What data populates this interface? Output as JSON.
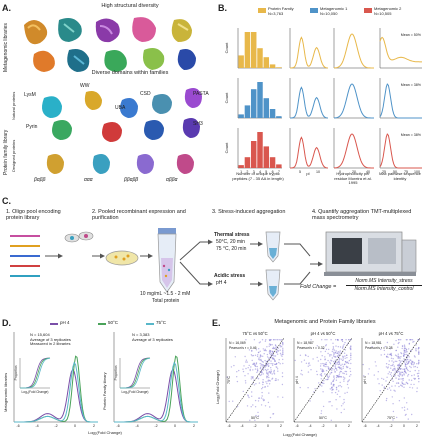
{
  "panel_a": {
    "letter": "A.",
    "top_title": "High structural diversity",
    "mid_title": "Diverse domains within families",
    "row_label_top": "Metagenomic libraries",
    "row_label_bottom": "Protein family library",
    "sublabel_natural": "Natural",
    "sublabel_natural2": "proteins",
    "sublabel_designed": "Designed",
    "sublabel_designed2": "proteins",
    "domains": [
      "LysM",
      "WW",
      "UBA",
      "CSD",
      "PASTA",
      "Pyrin",
      "SH3"
    ],
    "topologies": [
      "βαββ",
      "ααα",
      "ββαββ",
      "αββα"
    ]
  },
  "panel_b": {
    "letter": "B.",
    "legend": [
      {
        "name": "Protein Family",
        "n": "N=3,763",
        "color": "#e8b84a"
      },
      {
        "name": "Metagenomic 1",
        "n": "N=10,050",
        "color": "#4f93c8"
      },
      {
        "name": "Metagenomic 2",
        "n": "N=10,505",
        "color": "#d9574e"
      }
    ],
    "ylabel": "Count",
    "xlabels": [
      "Number of unique tryptic peptides (7 - 35 AA in length)",
      "pI",
      "Hydrophobicity per residue Moreira et al. 1995",
      "Max pairwise sequence identity"
    ],
    "mean_labels": [
      "Mean = 50%",
      "Mean = 38%",
      "Mean = 38%"
    ],
    "hist_ticks": [
      "1",
      "2",
      "3",
      "4",
      "5",
      "6",
      "7"
    ],
    "pi_ticks": [
      "5",
      "10"
    ],
    "hyd_ticks": [
      "0",
      "20",
      "40"
    ],
    "id_ticks": [
      "25",
      "50",
      "75",
      "100"
    ],
    "hist_values": [
      [
        0.35,
        1.0,
        1.0,
        0.55,
        0.3,
        0.1,
        0.02
      ],
      [
        0.1,
        0.35,
        0.8,
        1.0,
        0.55,
        0.25,
        0.05
      ],
      [
        0.08,
        0.3,
        0.75,
        1.0,
        0.6,
        0.3,
        0.1
      ]
    ]
  },
  "panel_c": {
    "letter": "C.",
    "step1": "1. Oligo pool encoding protein library",
    "step2": "2. Pooled recombinant expression and purification",
    "step3": "3. Stress-induced aggregation",
    "step4": "4. Quantify aggregation TMT-multiplexed mass spectrometry",
    "thermal_title": "Thermal stress",
    "thermal_1": "50°C, 20 min",
    "thermal_2": "75 °C, 20 min",
    "acid_title": "Acidic stress",
    "acid_1": "pH 4",
    "conc_1": "10 mg/mL ~1.5 - 2 mM",
    "conc_2": "Total protein",
    "formula_lhs": "Fold Change =",
    "formula_num": "Norm.MS Intensity_stress",
    "formula_den": "Norm.MS Intensity_control"
  },
  "panel_d": {
    "letter": "D.",
    "legend": [
      {
        "name": "pH 4",
        "color": "#7a4fa8"
      },
      {
        "name": "50°C",
        "color": "#4aa35a"
      },
      {
        "name": "75°C",
        "color": "#58b7c9"
      }
    ],
    "left_ylabel": "Metagenomic libraries",
    "right_ylabel": "Protein Family library",
    "left_note1": "N = 15,604",
    "left_note2": "Average of 3 replicates",
    "left_note3": "Measured in 2 libraries",
    "right_note1": "N = 3,383",
    "right_note2": "Average of 3 replicates",
    "inset_ylabel": "Proportion",
    "inset_xlabel": "Log₂(Fold Change)",
    "xlabel": "Log₂(Fold Change)",
    "ticks": [
      "-6",
      "-4",
      "-2",
      "0",
      "2"
    ]
  },
  "panel_e": {
    "letter": "E.",
    "title": "Metagenomic and Protein Family libraries",
    "subplots": [
      {
        "title": "75°C vs 50°C",
        "n": "N = 16,069",
        "r": "Pearson's r = 0.46",
        "xlabel": "50°C",
        "ylabel": "75°C"
      },
      {
        "title": "pH 4 vs 50°C",
        "n": "N = 18,987",
        "r": "Pearson's r = 0.32",
        "xlabel": "50°C",
        "ylabel": "pH 4"
      },
      {
        "title": "pH 4 vs 75°C",
        "n": "N = 18,981",
        "r": "Pearson's r = 0.28",
        "xlabel": "75°C",
        "ylabel": "pH 4"
      }
    ],
    "shared_ylabel": "Log₂(Fold Change)",
    "shared_xlabel": "Log₂(Fold Change)",
    "ticks": [
      "-6",
      "-4",
      "-2",
      "0",
      "2"
    ],
    "point_color": "#8a7fd6"
  }
}
